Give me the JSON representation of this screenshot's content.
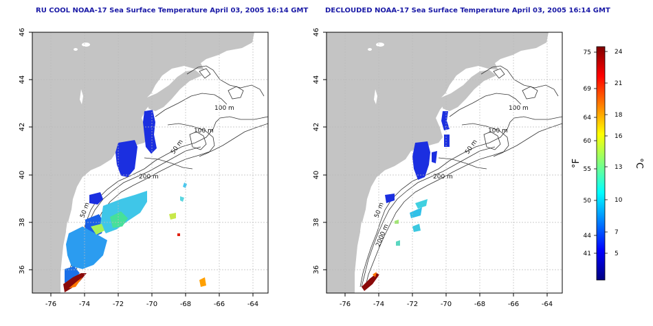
{
  "panels": [
    {
      "id": "left",
      "title": "RU COOL NOAA-17 Sea Surface Temperature April 03, 2005 16:14 GMT"
    },
    {
      "id": "right",
      "title": "DECLOUDED NOAA-17 Sea Surface Temperature April 03, 2005 16:14 GMT"
    }
  ],
  "axes": {
    "lon_ticks": [
      "-76",
      "-74",
      "-72",
      "-70",
      "-68",
      "-66",
      "-64"
    ],
    "lat_ticks": [
      "46",
      "44",
      "42",
      "40",
      "38",
      "36"
    ]
  },
  "contour_labels": [
    "100 m",
    "100 m",
    "50 m",
    "200 m",
    "50 m",
    "2000 m"
  ],
  "colorbar": {
    "f_ticks": [
      "75",
      "69",
      "64",
      "60",
      "55",
      "50",
      "44",
      "41"
    ],
    "c_ticks": [
      "24",
      "21",
      "18",
      "16",
      "13",
      "10",
      "7",
      "5"
    ],
    "f_unit": "°F",
    "c_unit": "°C",
    "colors": [
      "#00007f",
      "#0000ff",
      "#007fff",
      "#00ffff",
      "#7fff7f",
      "#ffff00",
      "#ff7f00",
      "#ff0000",
      "#7f0000"
    ]
  },
  "colors": {
    "land": "#c4c4c4",
    "title": "#1a1aa6",
    "grid": "#bbbbbb"
  }
}
